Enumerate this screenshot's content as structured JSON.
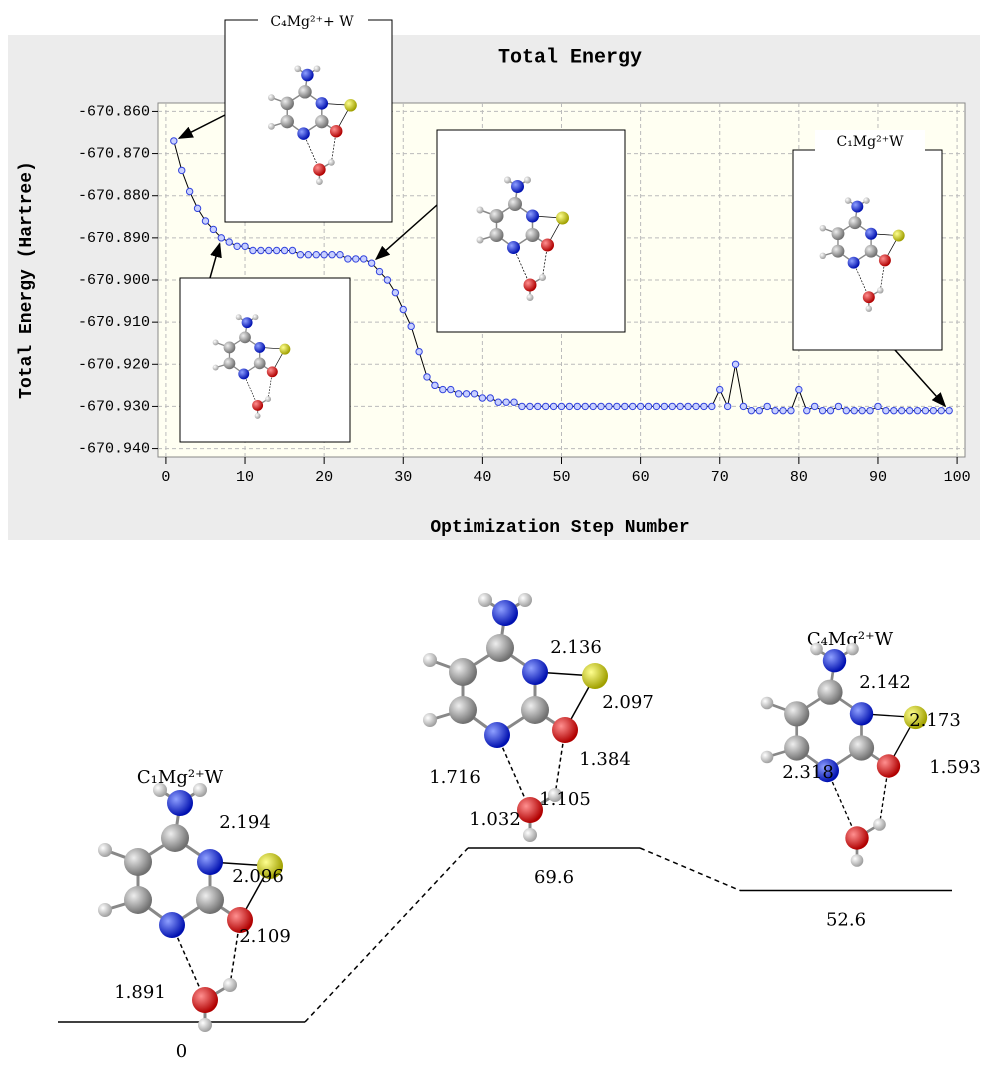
{
  "chart_data": [
    {
      "type": "line",
      "title": "Total Energy",
      "x_label": "Optimization Step Number",
      "y_label": "Total Energy (Hartree)",
      "x": [
        1,
        2,
        3,
        4,
        5,
        6,
        7,
        8,
        9,
        10,
        11,
        12,
        13,
        14,
        15,
        16,
        17,
        18,
        19,
        20,
        21,
        22,
        23,
        24,
        25,
        26,
        27,
        28,
        29,
        30,
        31,
        32,
        33,
        34,
        35,
        36,
        37,
        38,
        39,
        40,
        41,
        42,
        43,
        44,
        45,
        46,
        47,
        48,
        49,
        50,
        51,
        52,
        53,
        54,
        55,
        56,
        57,
        58,
        59,
        60,
        61,
        62,
        63,
        64,
        65,
        66,
        67,
        68,
        69,
        70,
        71,
        72,
        73,
        74,
        75,
        76,
        77,
        78,
        79,
        80,
        81,
        82,
        83,
        84,
        85,
        86,
        87,
        88,
        89,
        90,
        91,
        92,
        93,
        94,
        95,
        96,
        97,
        98,
        99
      ],
      "values": [
        -670.867,
        -670.874,
        -670.879,
        -670.883,
        -670.886,
        -670.888,
        -670.89,
        -670.891,
        -670.892,
        -670.892,
        -670.893,
        -670.893,
        -670.893,
        -670.893,
        -670.893,
        -670.893,
        -670.894,
        -670.894,
        -670.894,
        -670.894,
        -670.894,
        -670.894,
        -670.895,
        -670.895,
        -670.895,
        -670.896,
        -670.898,
        -670.9,
        -670.903,
        -670.907,
        -670.911,
        -670.917,
        -670.923,
        -670.925,
        -670.926,
        -670.926,
        -670.927,
        -670.927,
        -670.927,
        -670.928,
        -670.928,
        -670.929,
        -670.929,
        -670.929,
        -670.93,
        -670.93,
        -670.93,
        -670.93,
        -670.93,
        -670.93,
        -670.93,
        -670.93,
        -670.93,
        -670.93,
        -670.93,
        -670.93,
        -670.93,
        -670.93,
        -670.93,
        -670.93,
        -670.93,
        -670.93,
        -670.93,
        -670.93,
        -670.93,
        -670.93,
        -670.93,
        -670.93,
        -670.93,
        -670.926,
        -670.93,
        -670.92,
        -670.93,
        -670.931,
        -670.931,
        -670.93,
        -670.931,
        -670.931,
        -670.931,
        -670.926,
        -670.931,
        -670.93,
        -670.931,
        -670.931,
        -670.93,
        -670.931,
        -670.931,
        -670.931,
        -670.931,
        -670.93,
        -670.931,
        -670.931,
        -670.931,
        -670.931,
        -670.931,
        -670.931,
        -670.931,
        -670.931,
        -670.931
      ],
      "xlim": [
        -1,
        101
      ],
      "ylim": [
        -670.942,
        -670.858
      ],
      "xticks": [
        0,
        10,
        20,
        30,
        40,
        50,
        60,
        70,
        80,
        90,
        100
      ],
      "yticks": [
        {
          "value": -670.86,
          "label": "-670.860"
        },
        {
          "value": -670.87,
          "label": "-670.870"
        },
        {
          "value": -670.88,
          "label": "-670.880"
        },
        {
          "value": -670.89,
          "label": "-670.890"
        },
        {
          "value": -670.9,
          "label": "-670.900"
        },
        {
          "value": -670.91,
          "label": "-670.910"
        },
        {
          "value": -670.92,
          "label": "-670.920"
        },
        {
          "value": -670.93,
          "label": "-670.930"
        },
        {
          "value": -670.94,
          "label": "-670.940"
        }
      ],
      "grid": true,
      "color": "#3344dd",
      "annotations": [
        "C₄Mg²⁺+ W",
        "C₁Mg²⁺W"
      ]
    },
    {
      "type": "energy-profile",
      "categories": [
        "C₁Mg²⁺W",
        null,
        "C₄Mg²⁺W"
      ],
      "values": [
        0,
        69.6,
        52.6
      ],
      "bond_labels": [
        [
          2.194,
          2.096,
          2.109,
          1.891
        ],
        [
          2.136,
          2.097,
          1.384,
          1.716,
          1.105,
          1.032
        ],
        [
          2.142,
          2.173,
          2.318,
          1.593
        ]
      ]
    }
  ]
}
